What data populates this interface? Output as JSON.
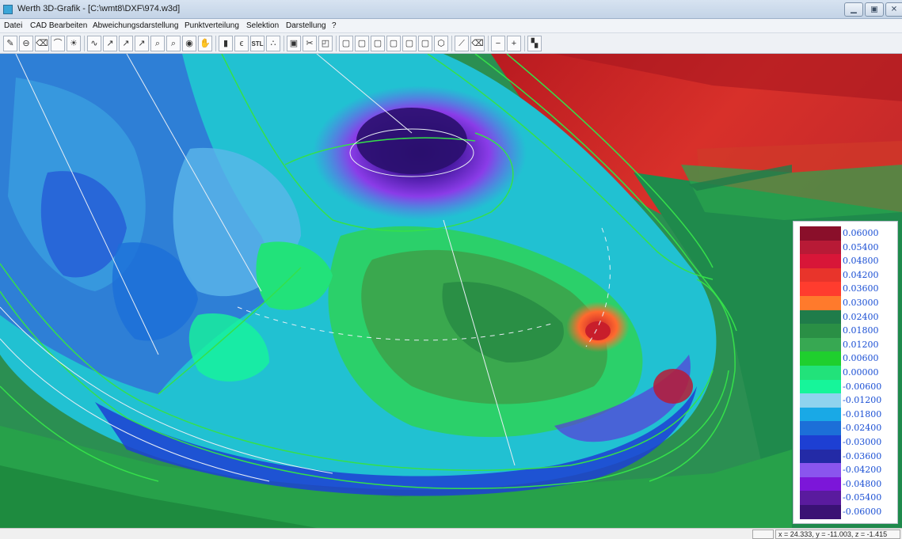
{
  "window": {
    "title": "Werth 3D-Grafik - [C:\\wmt8\\DXF\\974.w3d]",
    "controls": [
      "minimize",
      "maximize",
      "close"
    ]
  },
  "menu": {
    "items": [
      "Datei",
      "CAD Bearbeiten",
      "Abweichungsdarstellung",
      "Punktverteilung",
      "Selektion",
      "Darstellung",
      "?"
    ]
  },
  "toolbar": {
    "buttons": [
      {
        "icon": "pencil-icon",
        "glyph": "✎"
      },
      {
        "icon": "cylinder-icon",
        "glyph": "⊖"
      },
      {
        "icon": "eraser-icon",
        "glyph": "⌫"
      },
      {
        "icon": "arc-icon",
        "glyph": "⌒"
      },
      {
        "icon": "sun-icon",
        "glyph": "☀"
      },
      {
        "icon": "fit-curve-icon",
        "glyph": "∿"
      },
      {
        "icon": "axis-x-icon",
        "glyph": "↗"
      },
      {
        "icon": "axis-y-icon",
        "glyph": "↗"
      },
      {
        "icon": "axis-z-icon",
        "glyph": "↗"
      },
      {
        "icon": "zoom-in-icon",
        "glyph": "⌕"
      },
      {
        "icon": "zoom-out-icon",
        "glyph": "⌕"
      },
      {
        "icon": "eye-icon",
        "glyph": "◉"
      },
      {
        "icon": "hand-icon",
        "glyph": "✋"
      },
      {
        "icon": "cylinder-gray-icon",
        "glyph": "▮"
      },
      {
        "icon": "section-icon",
        "glyph": "ϵ"
      },
      {
        "icon": "stl-icon",
        "glyph": "STL"
      },
      {
        "icon": "points-icon",
        "glyph": "∴"
      },
      {
        "icon": "deviation-icon",
        "glyph": "▣"
      },
      {
        "icon": "cut-icon",
        "glyph": "✂"
      },
      {
        "icon": "surface-icon",
        "glyph": "◰"
      },
      {
        "icon": "view-front-icon",
        "glyph": "▢"
      },
      {
        "icon": "view-back-icon",
        "glyph": "▢"
      },
      {
        "icon": "view-left-icon",
        "glyph": "▢"
      },
      {
        "icon": "view-right-icon",
        "glyph": "▢"
      },
      {
        "icon": "view-top-icon",
        "glyph": "▢"
      },
      {
        "icon": "view-bottom-icon",
        "glyph": "▢"
      },
      {
        "icon": "view-iso-icon",
        "glyph": "⬡"
      },
      {
        "icon": "select-icon",
        "glyph": "⟋"
      },
      {
        "icon": "erase-selection-icon",
        "glyph": "⌫"
      },
      {
        "icon": "minus-icon",
        "glyph": "−"
      },
      {
        "icon": "plus-icon",
        "glyph": "+"
      },
      {
        "icon": "color-scale-icon",
        "glyph": "▚"
      }
    ]
  },
  "legend": {
    "values": [
      "0.06000",
      "0.05400",
      "0.04800",
      "0.04200",
      "0.03600",
      "0.03000",
      "0.02400",
      "0.01800",
      "0.01200",
      "0.00600",
      "0.00000",
      "-0.00600",
      "-0.01200",
      "-0.01800",
      "-0.02400",
      "-0.03000",
      "-0.03600",
      "-0.04200",
      "-0.04800",
      "-0.05400",
      "-0.06000"
    ],
    "colors": [
      "#8a0f2a",
      "#b81a36",
      "#d81638",
      "#e8342b",
      "#ff3c2e",
      "#ff7a2c",
      "#1f7c4a",
      "#2a8f45",
      "#37a852",
      "#1fcf2e",
      "#22e27a",
      "#16f59a",
      "#8fd3ee",
      "#19a9e6",
      "#1c6fd8",
      "#1d3fd3",
      "#232aa6",
      "#8a55ee",
      "#7c16d9",
      "#5a1b9e",
      "#3a1274"
    ]
  },
  "status": {
    "coords": "x = 24.333, y = -11.003, z = -1.415"
  }
}
